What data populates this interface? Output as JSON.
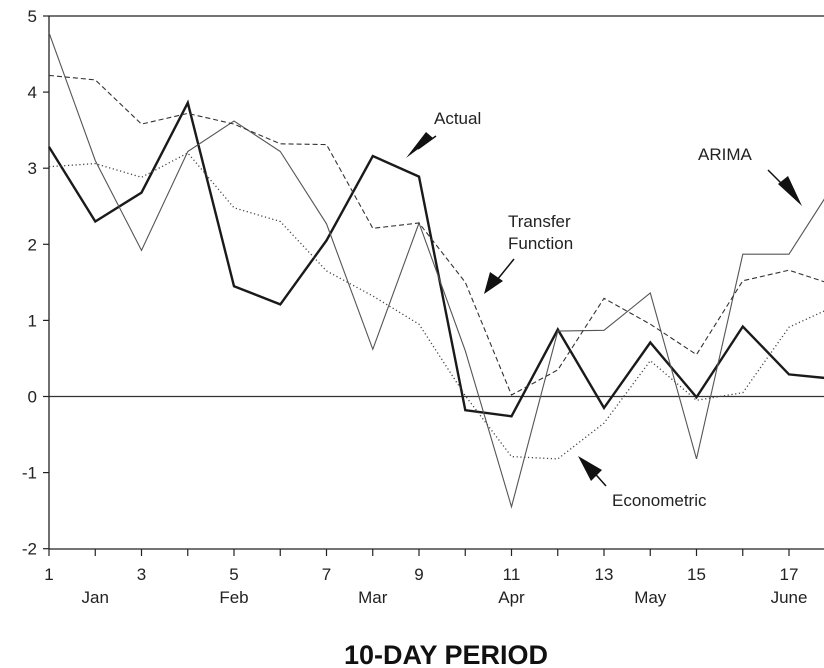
{
  "chart_data": {
    "type": "line",
    "title": "",
    "xlabel": "10-DAY PERIOD",
    "ylabel": "",
    "xlim": [
      1,
      18
    ],
    "ylim": [
      -2,
      5
    ],
    "x_ticks": [
      1,
      3,
      5,
      7,
      9,
      11,
      13,
      15,
      17
    ],
    "y_ticks": [
      5,
      4,
      3,
      2,
      1,
      0,
      -1,
      -2
    ],
    "month_labels": [
      {
        "label": "Jan",
        "x": 2
      },
      {
        "label": "Feb",
        "x": 5
      },
      {
        "label": "Mar",
        "x": 8
      },
      {
        "label": "Apr",
        "x": 11
      },
      {
        "label": "May",
        "x": 14
      },
      {
        "label": "June",
        "x": 17
      }
    ],
    "x": [
      1,
      2,
      3,
      4,
      5,
      6,
      7,
      8,
      9,
      10,
      11,
      12,
      13,
      14,
      15,
      16,
      17,
      18
    ],
    "series": [
      {
        "name": "Actual",
        "style": "bold",
        "values": [
          3.28,
          2.3,
          2.68,
          3.86,
          1.45,
          1.21,
          2.05,
          3.16,
          2.89,
          -0.18,
          -0.26,
          0.88,
          -0.15,
          0.71,
          -0.01,
          0.92,
          0.29,
          0.23
        ]
      },
      {
        "name": "ARIMA",
        "style": "thin",
        "values": [
          4.78,
          3.1,
          1.92,
          3.22,
          3.62,
          3.22,
          2.27,
          0.62,
          2.28,
          0.6,
          -1.45,
          0.86,
          0.87,
          1.36,
          -0.82,
          1.87,
          1.87,
          2.82
        ]
      },
      {
        "name": "Transfer Function",
        "style": "dashed",
        "values": [
          4.22,
          4.16,
          3.58,
          3.72,
          3.58,
          3.32,
          3.31,
          2.21,
          2.28,
          1.5,
          0.02,
          0.35,
          1.29,
          0.95,
          0.55,
          1.52,
          1.66,
          1.46
        ]
      },
      {
        "name": "Econometric",
        "style": "dotted",
        "values": [
          3.02,
          3.06,
          2.88,
          3.2,
          2.48,
          2.3,
          1.65,
          1.32,
          0.95,
          0.01,
          -0.79,
          -0.82,
          -0.35,
          0.47,
          -0.05,
          0.05,
          0.91,
          1.19
        ]
      }
    ],
    "annotations": [
      {
        "text": "Actual",
        "target_series": "Actual"
      },
      {
        "text": "ARIMA",
        "target_series": "ARIMA"
      },
      {
        "text": "Transfer",
        "target_series": "Transfer Function"
      },
      {
        "text": "Function",
        "target_series": "Transfer Function"
      },
      {
        "text": "Econometric",
        "target_series": "Econometric"
      }
    ],
    "zero_line": true,
    "grid": false,
    "legend": "none"
  }
}
